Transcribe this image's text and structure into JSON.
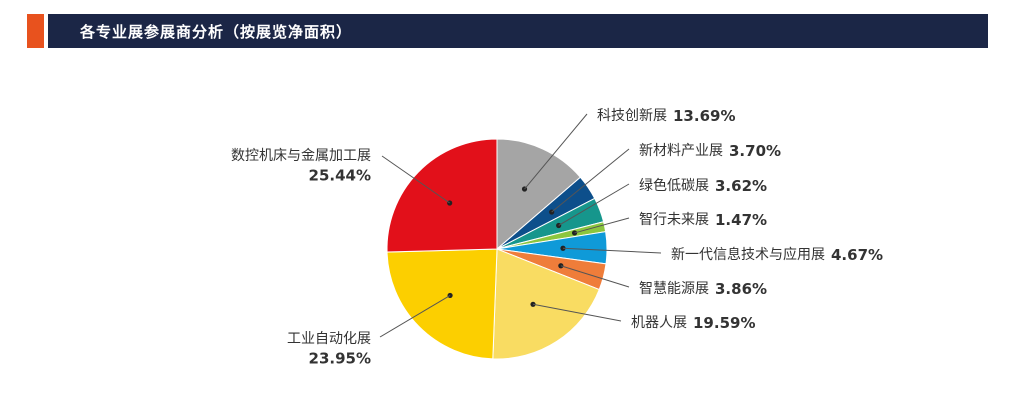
{
  "header": {
    "title": "各专业展参展商分析（按展览净面积）",
    "accent_color": "#e8521e",
    "bar_color": "#1b2646"
  },
  "chart_data": {
    "type": "pie",
    "title": "",
    "start_angle_deg": 0,
    "direction": "clockwise",
    "slices": [
      {
        "label": "科技创新展",
        "value": 13.69,
        "value_text": "13.69%",
        "color": "#a5a5a5"
      },
      {
        "label": "新材料产业展",
        "value": 3.7,
        "value_text": "3.70%",
        "color": "#0d4f8b"
      },
      {
        "label": "绿色低碳展",
        "value": 3.62,
        "value_text": "3.62%",
        "color": "#16968c"
      },
      {
        "label": "智行未来展",
        "value": 1.47,
        "value_text": "1.47%",
        "color": "#8cc63f"
      },
      {
        "label": "新一代信息技术与应用展",
        "value": 4.67,
        "value_text": "4.67%",
        "color": "#0f9ad8"
      },
      {
        "label": "智慧能源展",
        "value": 3.86,
        "value_text": "3.86%",
        "color": "#ef7d3a"
      },
      {
        "label": "机器人展",
        "value": 19.59,
        "value_text": "19.59%",
        "color": "#f9dc62"
      },
      {
        "label": "工业自动化展",
        "value": 23.95,
        "value_text": "23.95%",
        "color": "#fccf00"
      },
      {
        "label": "数控机床与金属加工展",
        "value": 25.44,
        "value_text": "25.44%",
        "color": "#e2101a"
      }
    ]
  }
}
